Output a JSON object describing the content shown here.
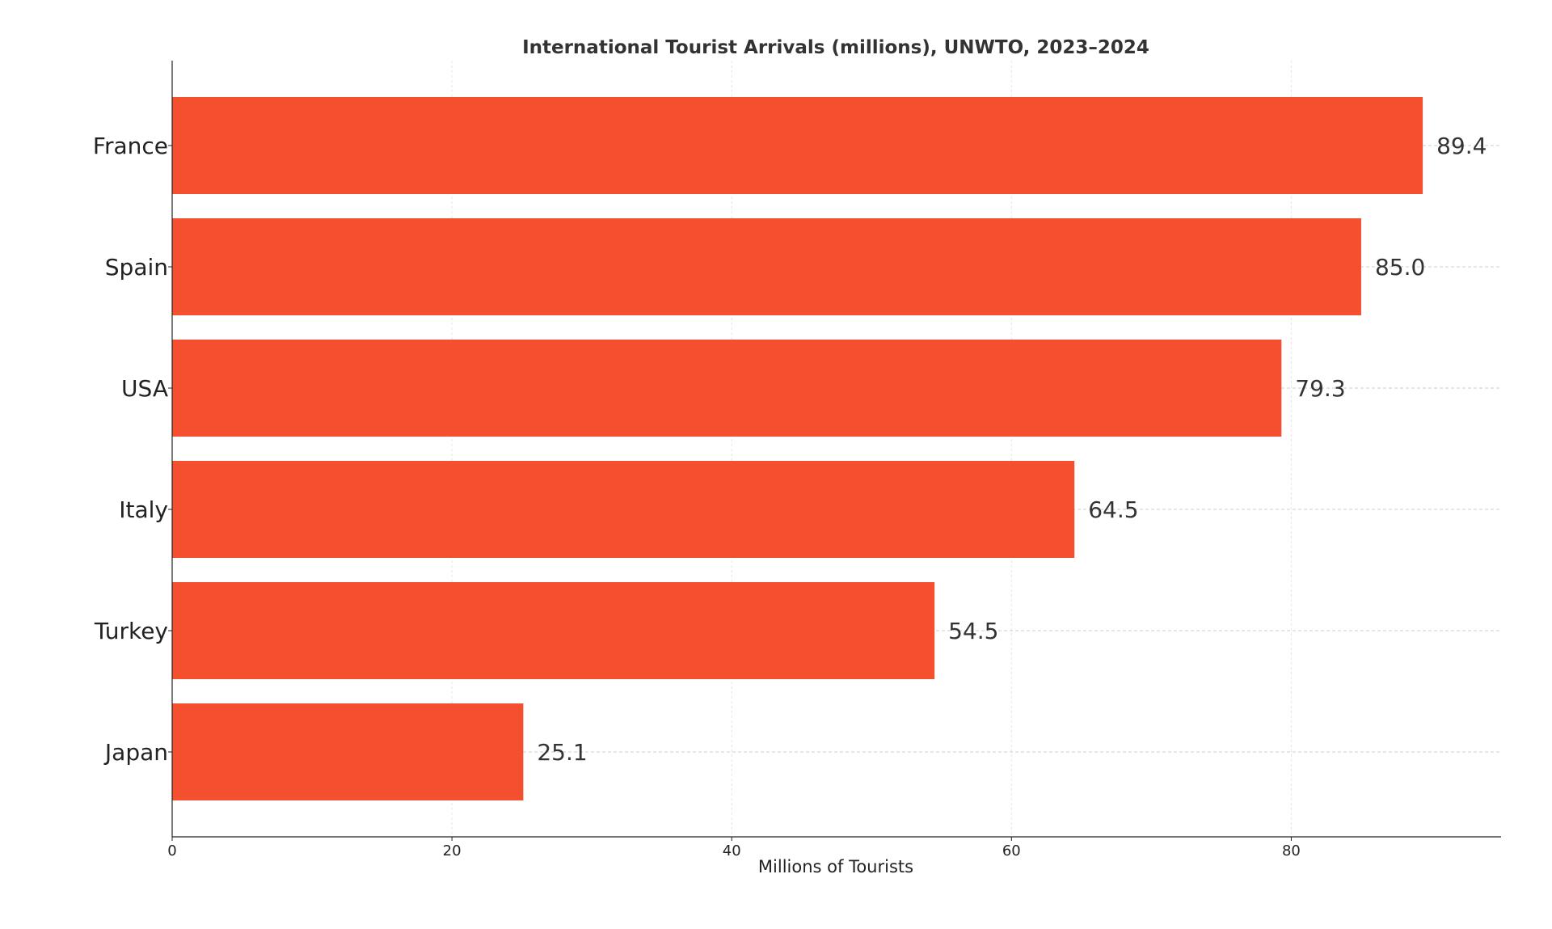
{
  "chart_data": {
    "type": "bar",
    "orientation": "horizontal",
    "title": "International Tourist Arrivals (millions), UNWTO, 2023–2024",
    "xlabel": "Millions of Tourists",
    "ylabel": "",
    "categories": [
      "France",
      "Spain",
      "USA",
      "Italy",
      "Turkey",
      "Japan"
    ],
    "values": [
      89.4,
      85.0,
      79.3,
      64.5,
      54.5,
      25.1
    ],
    "value_labels": [
      "89.4",
      "85.0",
      "79.3",
      "64.5",
      "54.5",
      "25.1"
    ],
    "xlim": [
      0,
      95
    ],
    "xticks": [
      0,
      20,
      40,
      60,
      80
    ],
    "xtick_labels": [
      "0",
      "20",
      "40",
      "60",
      "80"
    ],
    "grid": true,
    "legend": "none",
    "bar_color": "#f44f2f",
    "grid_color": "#cccccc"
  }
}
